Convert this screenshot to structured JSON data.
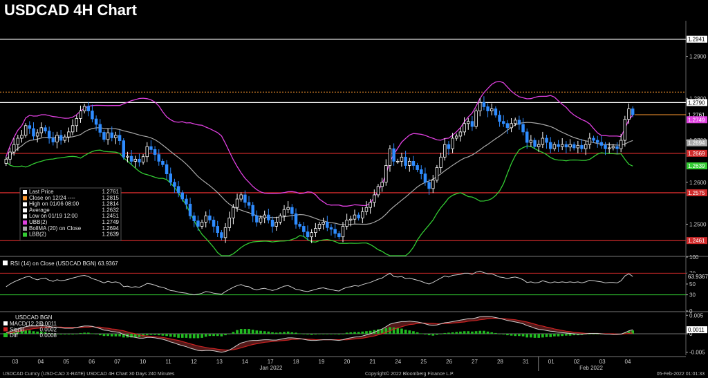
{
  "title": "USDCAD 4H Chart",
  "colors": {
    "background": "#000000",
    "up_candle": "#ffffff",
    "down_candle": "#2f8cff",
    "ubb": "#e040e0",
    "bollma": "#a9a9a9",
    "lbb": "#33cc33",
    "support_line": "#d02a2a",
    "resistance_line": "#ffffff",
    "close_dotted": "#ff9a30",
    "rsi_line": "#cfcfcf",
    "macd": "#ffffff",
    "sig": "#cc2222",
    "diff": "#22bb22"
  },
  "chart_data": [
    {
      "type": "candlestick",
      "panel": "price",
      "ylim": [
        1.2425,
        1.2985
      ],
      "y_ticks": [
        1.25,
        1.26,
        1.27,
        1.28,
        1.29
      ],
      "y_tick_labels": [
        "1.2500",
        "1.2600",
        "1.2700",
        "1.2800",
        "1.2900"
      ],
      "x_tick_labels": [
        "03",
        "04",
        "05",
        "06",
        "07",
        "10",
        "11",
        "12",
        "13",
        "14",
        "17",
        "18",
        "19",
        "20",
        "21",
        "24",
        "25",
        "26",
        "27",
        "28",
        "31",
        "01",
        "02",
        "03",
        "04"
      ],
      "x_group_labels": [
        "Jan 2022",
        "Feb 2022"
      ],
      "horizontal_lines": [
        {
          "value": 1.2941,
          "label": "1.2941",
          "kind": "resistance"
        },
        {
          "value": 1.279,
          "label": "1.2790",
          "kind": "resistance"
        },
        {
          "value": 1.2669,
          "label": "1.2669",
          "kind": "support"
        },
        {
          "value": 1.2575,
          "label": "1.2575",
          "kind": "support"
        },
        {
          "value": 1.2461,
          "label": "1.2461",
          "kind": "support"
        }
      ],
      "dotted_line": {
        "value": 1.2815
      },
      "last_price": {
        "value": 1.2761,
        "label": "1.2761"
      },
      "badges": [
        {
          "value": 1.2749,
          "label": "1.2749",
          "series": "UBB"
        },
        {
          "value": 1.2694,
          "label": "1.2694",
          "series": "BollMA"
        },
        {
          "value": 1.2639,
          "label": "1.2639",
          "series": "LBB"
        }
      ],
      "legend": [
        {
          "label": "Last Price",
          "value": "1.2761"
        },
        {
          "label": "Close on 12/24 ----",
          "value": "1.2815"
        },
        {
          "label": "High on 01/06 08:00",
          "value": "1.2814"
        },
        {
          "label": "Average",
          "value": "1.2632"
        },
        {
          "label": "Low on 01/19 12:00",
          "value": "1.2451"
        },
        {
          "label": "UBB(2)",
          "value": "1.2749"
        },
        {
          "label": "BollMA (20)  on Close",
          "value": "1.2694"
        },
        {
          "label": "LBB(2)",
          "value": "1.2639"
        }
      ],
      "close": [
        1.2655,
        1.2672,
        1.269,
        1.2705,
        1.2712,
        1.2735,
        1.2728,
        1.271,
        1.2718,
        1.273,
        1.2722,
        1.2705,
        1.2696,
        1.2712,
        1.27,
        1.2708,
        1.272,
        1.2735,
        1.2752,
        1.277,
        1.2781,
        1.277,
        1.2751,
        1.2738,
        1.2719,
        1.2702,
        1.2718,
        1.2706,
        1.2712,
        1.2699,
        1.266,
        1.2662,
        1.265,
        1.2655,
        1.2648,
        1.2661,
        1.2685,
        1.2678,
        1.2666,
        1.265,
        1.2642,
        1.262,
        1.26,
        1.259,
        1.2575,
        1.256,
        1.2548,
        1.252,
        1.2508,
        1.2495,
        1.2505,
        1.252,
        1.251,
        1.2495,
        1.248,
        1.2468,
        1.2492,
        1.2515,
        1.254,
        1.256,
        1.257,
        1.2552,
        1.2545,
        1.252,
        1.2505,
        1.2515,
        1.2522,
        1.251,
        1.2495,
        1.2505,
        1.252,
        1.2535,
        1.254,
        1.2525,
        1.25,
        1.2495,
        1.2482,
        1.247,
        1.248,
        1.249,
        1.25,
        1.2505,
        1.2492,
        1.2488,
        1.2478,
        1.247,
        1.2495,
        1.251,
        1.2512,
        1.2522,
        1.2515,
        1.253,
        1.254,
        1.2552,
        1.257,
        1.259,
        1.26,
        1.264,
        1.268,
        1.265,
        1.265,
        1.266,
        1.264,
        1.265,
        1.264,
        1.263,
        1.262,
        1.26,
        1.2585,
        1.2605,
        1.2635,
        1.266,
        1.269,
        1.268,
        1.2705,
        1.271,
        1.272,
        1.274,
        1.2745,
        1.2733,
        1.277,
        1.279,
        1.278,
        1.277,
        1.2775,
        1.276,
        1.2745,
        1.274,
        1.273,
        1.274,
        1.2748,
        1.2738,
        1.272,
        1.2695,
        1.27,
        1.2685,
        1.269,
        1.2705,
        1.2695,
        1.268,
        1.269,
        1.2685,
        1.269,
        1.2684,
        1.269,
        1.2682,
        1.2688,
        1.268,
        1.269,
        1.2705,
        1.27,
        1.2695,
        1.2688,
        1.268,
        1.2682,
        1.2685,
        1.268,
        1.27,
        1.275,
        1.2775,
        1.2761
      ],
      "high_low_spread": 0.0015
    },
    {
      "type": "line",
      "panel": "rsi",
      "title": "RSI (14)   on Close (USDCAD BGN) 63.9367",
      "ylim": [
        0,
        100
      ],
      "y_ticks": [
        0,
        30,
        50,
        70,
        100
      ],
      "y_tick_labels": [
        "0",
        "30",
        "50",
        "70",
        "100"
      ],
      "overbought": 70,
      "oversold": 30,
      "last_label": "63.9367",
      "values": [
        45,
        50,
        54,
        57,
        60,
        63,
        64,
        60,
        58,
        60,
        61,
        57,
        55,
        58,
        56,
        57,
        59,
        61,
        63,
        65,
        66,
        64,
        60,
        58,
        55,
        52,
        55,
        53,
        54,
        52,
        45,
        46,
        44,
        45,
        44,
        47,
        51,
        50,
        48,
        45,
        44,
        41,
        38,
        37,
        35,
        34,
        33,
        31,
        30,
        31,
        33,
        36,
        35,
        33,
        32,
        31,
        36,
        40,
        44,
        47,
        49,
        46,
        45,
        41,
        39,
        41,
        42,
        40,
        38,
        40,
        43,
        46,
        47,
        44,
        40,
        39,
        37,
        36,
        38,
        40,
        42,
        43,
        41,
        40,
        38,
        37,
        41,
        44,
        45,
        47,
        46,
        49,
        51,
        53,
        56,
        59,
        61,
        66,
        70,
        64,
        63,
        64,
        60,
        61,
        59,
        57,
        55,
        52,
        50,
        53,
        57,
        61,
        65,
        63,
        66,
        67,
        68,
        70,
        70,
        68,
        72,
        74,
        71,
        69,
        69,
        66,
        63,
        62,
        60,
        62,
        63,
        61,
        58,
        53,
        54,
        52,
        53,
        56,
        54,
        52,
        54,
        53,
        54,
        53,
        54,
        53,
        54,
        52,
        54,
        57,
        56,
        55,
        54,
        52,
        53,
        53,
        52,
        56,
        65,
        69,
        64
      ]
    },
    {
      "type": "histogram+line",
      "panel": "macd",
      "ylim": [
        -0.0058,
        0.0058
      ],
      "y_ticks": [
        -0.005,
        0.0,
        0.005
      ],
      "y_tick_labels": [
        "-0.005",
        "0",
        "0.005"
      ],
      "legend_title": "USDCAD BGN",
      "legend": [
        {
          "label": "MACD(12,26)",
          "value": "0.0011"
        },
        {
          "label": "Sig(9)",
          "value": "0.0002"
        },
        {
          "label": "Diff",
          "value": "0.0008"
        }
      ],
      "last_label": "0.0011",
      "macd": [
        0.0002,
        0.0006,
        0.001,
        0.0013,
        0.0016,
        0.0019,
        0.0021,
        0.0021,
        0.0021,
        0.0022,
        0.0021,
        0.002,
        0.0018,
        0.0018,
        0.0016,
        0.0015,
        0.0015,
        0.0015,
        0.0017,
        0.0019,
        0.0021,
        0.0021,
        0.002,
        0.0017,
        0.0014,
        0.001,
        0.0009,
        0.0006,
        0.0005,
        0.0003,
        -0.0002,
        -0.0005,
        -0.0008,
        -0.001,
        -0.0012,
        -0.0012,
        -0.001,
        -0.001,
        -0.0011,
        -0.0013,
        -0.0015,
        -0.0018,
        -0.0022,
        -0.0025,
        -0.0029,
        -0.0032,
        -0.0035,
        -0.0039,
        -0.0042,
        -0.0045,
        -0.0046,
        -0.0045,
        -0.0045,
        -0.0046,
        -0.0048,
        -0.005,
        -0.0048,
        -0.0044,
        -0.0038,
        -0.0031,
        -0.0025,
        -0.0022,
        -0.0019,
        -0.0018,
        -0.0018,
        -0.0017,
        -0.0016,
        -0.0016,
        -0.0017,
        -0.0017,
        -0.0015,
        -0.0013,
        -0.0011,
        -0.0011,
        -0.0012,
        -0.0013,
        -0.0015,
        -0.0017,
        -0.0018,
        -0.0018,
        -0.0017,
        -0.0016,
        -0.0016,
        -0.0016,
        -0.0017,
        -0.0018,
        -0.0016,
        -0.0013,
        -0.0011,
        -0.0009,
        -0.0008,
        -0.0006,
        -0.0003,
        0.0,
        0.0004,
        0.0009,
        0.0013,
        0.0019,
        0.0026,
        0.0029,
        0.0031,
        0.0033,
        0.0033,
        0.0034,
        0.0033,
        0.0032,
        0.003,
        0.0027,
        0.0024,
        0.0023,
        0.0024,
        0.0027,
        0.003,
        0.0031,
        0.0033,
        0.0035,
        0.0037,
        0.0039,
        0.0041,
        0.0041,
        0.0043,
        0.0046,
        0.0047,
        0.0047,
        0.0046,
        0.0044,
        0.0042,
        0.0039,
        0.0036,
        0.0034,
        0.0032,
        0.003,
        0.0027,
        0.0022,
        0.0019,
        0.0015,
        0.0012,
        0.0011,
        0.0009,
        0.0007,
        0.0006,
        0.0004,
        0.0003,
        0.0002,
        0.0001,
        0.0,
        -0.0001,
        -0.0001,
        0.0,
        0.0001,
        0.0001,
        0.0001,
        0.0,
        -0.0001,
        -0.0001,
        -0.0002,
        -0.0002,
        -0.0001,
        0.0003,
        0.0008,
        0.0011
      ],
      "sig": [
        0.0001,
        0.0002,
        0.0004,
        0.0006,
        0.0008,
        0.001,
        0.0012,
        0.0014,
        0.0015,
        0.0016,
        0.0017,
        0.0018,
        0.0018,
        0.0018,
        0.0018,
        0.0017,
        0.0017,
        0.0017,
        0.0017,
        0.0017,
        0.0018,
        0.0018,
        0.0019,
        0.0018,
        0.0018,
        0.0016,
        0.0015,
        0.0013,
        0.0012,
        0.001,
        0.0008,
        0.0005,
        0.0002,
        -0.0,
        -0.0003,
        -0.0005,
        -0.0006,
        -0.0007,
        -0.0008,
        -0.0009,
        -0.001,
        -0.0012,
        -0.0014,
        -0.0016,
        -0.0018,
        -0.0021,
        -0.0024,
        -0.0027,
        -0.003,
        -0.0033,
        -0.0035,
        -0.0037,
        -0.0039,
        -0.004,
        -0.0042,
        -0.0043,
        -0.0044,
        -0.0044,
        -0.0043,
        -0.0041,
        -0.0038,
        -0.0035,
        -0.0032,
        -0.0029,
        -0.0027,
        -0.0025,
        -0.0023,
        -0.0022,
        -0.0021,
        -0.002,
        -0.0019,
        -0.0018,
        -0.0017,
        -0.0015,
        -0.0015,
        -0.0014,
        -0.0014,
        -0.0015,
        -0.0015,
        -0.0016,
        -0.0016,
        -0.0016,
        -0.0016,
        -0.0016,
        -0.0016,
        -0.0016,
        -0.0016,
        -0.0016,
        -0.0015,
        -0.0014,
        -0.0013,
        -0.0012,
        -0.001,
        -0.0008,
        -0.0006,
        -0.0003,
        -0.0,
        0.0004,
        0.0008,
        0.0012,
        0.0016,
        0.0019,
        0.0022,
        0.0025,
        0.0026,
        0.0028,
        0.0029,
        0.0029,
        0.0028,
        0.0028,
        0.0027,
        0.0027,
        0.0028,
        0.0028,
        0.0029,
        0.003,
        0.0031,
        0.0032,
        0.0034,
        0.0035,
        0.0036,
        0.0038,
        0.0039,
        0.0041,
        0.0042,
        0.0042,
        0.0042,
        0.0041,
        0.004,
        0.0039,
        0.0038,
        0.0036,
        0.0034,
        0.0032,
        0.0029,
        0.0026,
        0.0023,
        0.0021,
        0.0018,
        0.0016,
        0.0013,
        0.0011,
        0.0009,
        0.0007,
        0.0006,
        0.0004,
        0.0003,
        0.0002,
        0.0001,
        0.0001,
        0.0001,
        0.0001,
        0.0,
        0.0,
        -0.0,
        -0.0,
        -0.0001,
        -0.0001,
        0.0,
        0.0001,
        0.0002
      ],
      "diff_values_note_free": true
    }
  ],
  "footer": {
    "left": "USDCAD Curncy (USD-CAD X-RATE) USDCAD 4H Chart 30 Days 240 Minutes",
    "center": "Copyright© 2022 Bloomberg Finance L.P.",
    "right": "05-Feb-2022 01:01:33"
  }
}
